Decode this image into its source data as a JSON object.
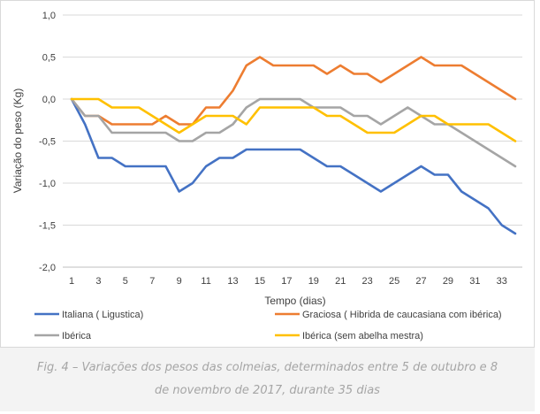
{
  "chart_data": {
    "type": "line",
    "xlabel": "Tempo (dias)",
    "ylabel": "Variação do peso (Kg)",
    "ylim": [
      -2.0,
      1.0
    ],
    "yticks": [
      1.0,
      0.5,
      0.0,
      -0.5,
      -1.0,
      -1.5,
      -2.0
    ],
    "ytick_labels": [
      "1,0",
      "0,5",
      "0,0",
      "-0,5",
      "-1,0",
      "-1,5",
      "-2,0"
    ],
    "xlim": [
      1,
      34
    ],
    "xticks": [
      1,
      3,
      5,
      7,
      9,
      11,
      13,
      15,
      17,
      19,
      21,
      23,
      25,
      27,
      29,
      31,
      33
    ],
    "xtick_labels": [
      "1",
      "3",
      "5",
      "7",
      "9",
      "11",
      "13",
      "15",
      "17",
      "19",
      "21",
      "23",
      "25",
      "27",
      "29",
      "31",
      "33"
    ],
    "grid": "horizontal",
    "legend_position": "bottom",
    "x": [
      1,
      2,
      3,
      4,
      5,
      6,
      7,
      8,
      9,
      10,
      11,
      12,
      13,
      14,
      15,
      16,
      17,
      18,
      19,
      20,
      21,
      22,
      23,
      24,
      25,
      26,
      27,
      28,
      29,
      30,
      31,
      32,
      33,
      34
    ],
    "series": [
      {
        "name": "Italiana ( Ligustica)",
        "color": "#4472c4",
        "values": [
          0.0,
          -0.3,
          -0.7,
          -0.7,
          -0.8,
          -0.8,
          -0.8,
          -0.8,
          -1.1,
          -1.0,
          -0.8,
          -0.7,
          -0.7,
          -0.6,
          -0.6,
          -0.6,
          -0.6,
          -0.6,
          -0.7,
          -0.8,
          -0.8,
          -0.9,
          -1.0,
          -1.1,
          -1.0,
          -0.9,
          -0.8,
          -0.9,
          -0.9,
          -1.1,
          -1.2,
          -1.3,
          -1.5,
          -1.6
        ]
      },
      {
        "name": "Graciosa ( Hibrida de caucasiana com ibérica)",
        "color": "#ed7d31",
        "values": [
          0.0,
          -0.2,
          -0.2,
          -0.3,
          -0.3,
          -0.3,
          -0.3,
          -0.2,
          -0.3,
          -0.3,
          -0.1,
          -0.1,
          0.1,
          0.4,
          0.5,
          0.4,
          0.4,
          0.4,
          0.4,
          0.3,
          0.4,
          0.3,
          0.3,
          0.2,
          0.3,
          0.4,
          0.5,
          0.4,
          0.4,
          0.4,
          0.3,
          0.2,
          0.1,
          0.0
        ]
      },
      {
        "name": "Ibérica",
        "color": "#a5a5a5",
        "values": [
          0.0,
          -0.2,
          -0.2,
          -0.4,
          -0.4,
          -0.4,
          -0.4,
          -0.4,
          -0.5,
          -0.5,
          -0.4,
          -0.4,
          -0.3,
          -0.1,
          0.0,
          0.0,
          0.0,
          0.0,
          -0.1,
          -0.1,
          -0.1,
          -0.2,
          -0.2,
          -0.3,
          -0.2,
          -0.1,
          -0.2,
          -0.3,
          -0.3,
          -0.4,
          -0.5,
          -0.6,
          -0.7,
          -0.8
        ]
      },
      {
        "name": "Ibérica (sem abelha mestra)",
        "color": "#ffc000",
        "values": [
          0.0,
          0.0,
          0.0,
          -0.1,
          -0.1,
          -0.1,
          -0.2,
          -0.3,
          -0.4,
          -0.3,
          -0.2,
          -0.2,
          -0.2,
          -0.3,
          -0.1,
          -0.1,
          -0.1,
          -0.1,
          -0.1,
          -0.2,
          -0.2,
          -0.3,
          -0.4,
          -0.4,
          -0.4,
          -0.3,
          -0.2,
          -0.2,
          -0.3,
          -0.3,
          -0.3,
          -0.3,
          -0.4,
          -0.5
        ]
      }
    ]
  },
  "caption": {
    "text": "Fig. 4 – Variações dos pesos das colmeias, determinados entre 5 de outubro e 8 de novembro de 2017, durante 35 dias"
  }
}
